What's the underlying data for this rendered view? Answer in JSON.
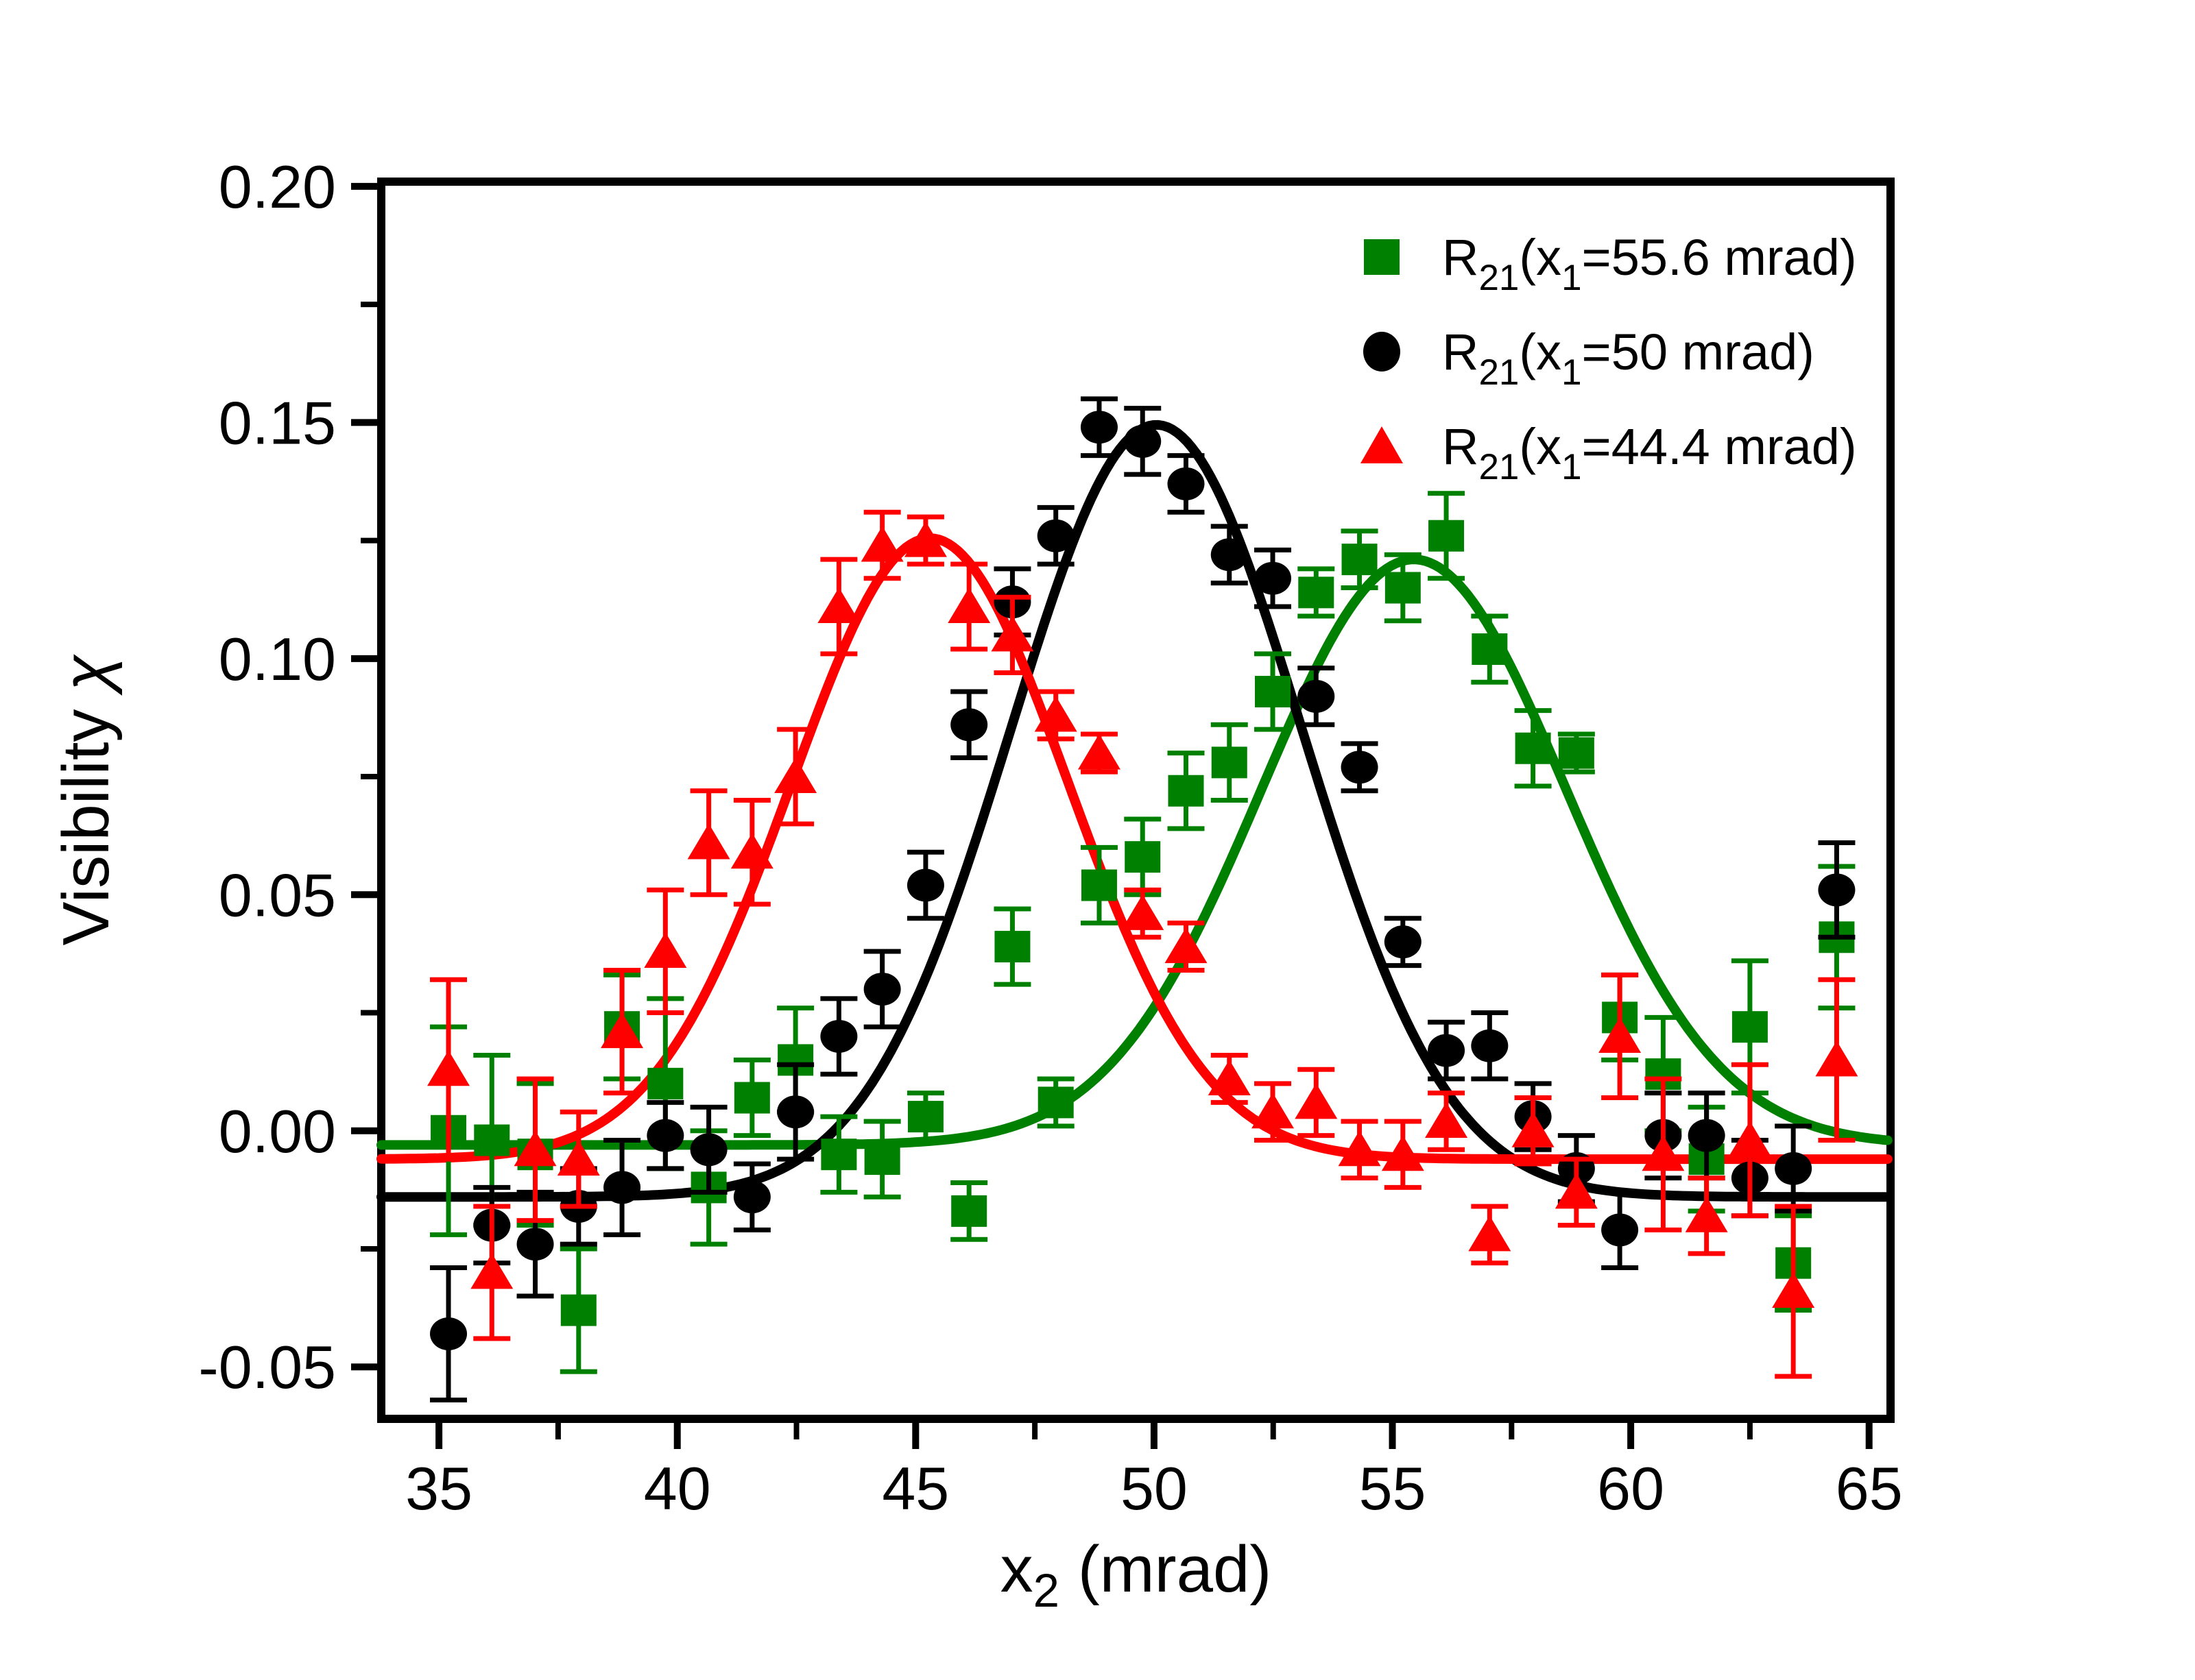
{
  "chart_data": {
    "type": "scatter",
    "title": "",
    "ylabel_segments": [
      {
        "t": "Visibility ",
        "italic": false
      },
      {
        "t": "χ",
        "italic": true
      }
    ],
    "xlabel_segments": [
      {
        "t": "x",
        "sub": false
      },
      {
        "t": "2",
        "sub": true
      },
      {
        "t": " (mrad)",
        "sub": false
      }
    ],
    "xlim": [
      33.79,
      65.45
    ],
    "ylim": [
      -0.061,
      0.201
    ],
    "x_major_ticks": [
      35,
      40,
      45,
      50,
      55,
      60,
      65
    ],
    "x_major_tick_labels": [
      "35",
      "40",
      "45",
      "50",
      "55",
      "60",
      "65"
    ],
    "x_minor_ticks": [
      37.5,
      42.5,
      47.5,
      52.5,
      57.5,
      62.5
    ],
    "y_major_ticks": [
      0.2,
      0.15,
      0.1,
      0.05,
      0.0,
      -0.05
    ],
    "y_major_tick_labels": [
      "0.20",
      "0.15",
      "0.10",
      "0.05",
      "0.00",
      "-0.05"
    ],
    "y_minor_ticks": [
      0.175,
      0.125,
      0.075,
      0.025,
      -0.025
    ],
    "grid": false,
    "legend_position": "top-right-inside",
    "x": [
      35.2,
      36.11,
      37.02,
      37.93,
      38.84,
      39.75,
      40.66,
      41.57,
      42.48,
      43.39,
      44.3,
      45.21,
      46.12,
      47.03,
      47.94,
      48.85,
      49.76,
      50.67,
      51.58,
      52.49,
      53.4,
      54.31,
      55.22,
      56.13,
      57.04,
      57.95,
      58.86,
      59.77,
      60.68,
      61.59,
      62.5,
      63.41,
      64.32
    ],
    "series": [
      {
        "id": "green",
        "marker": "square",
        "color": "#008000",
        "label_segments": [
          {
            "t": "R",
            "sub": false
          },
          {
            "t": "21",
            "sub": true
          },
          {
            "t": "(x",
            "sub": false
          },
          {
            "t": "1",
            "sub": true
          },
          {
            "t": "=55.6 mrad)",
            "sub": false
          }
        ],
        "y": [
          0.0,
          -0.002,
          -0.005,
          -0.038,
          0.022,
          0.01,
          -0.012,
          0.007,
          0.015,
          -0.005,
          -0.006,
          0.003,
          -0.017,
          0.039,
          0.006,
          0.052,
          0.058,
          0.072,
          0.078,
          0.093,
          0.114,
          0.121,
          0.115,
          0.126,
          0.102,
          0.081,
          0.08,
          0.024,
          0.012,
          -0.006,
          0.022,
          -0.028,
          0.041
        ],
        "yerr": [
          0.022,
          0.018,
          0.015,
          0.013,
          0.011,
          0.018,
          0.012,
          0.008,
          0.011,
          0.008,
          0.008,
          0.005,
          0.006,
          0.008,
          0.005,
          0.008,
          0.008,
          0.008,
          0.008,
          0.008,
          0.005,
          0.006,
          0.007,
          0.009,
          0.007,
          0.008,
          0.004,
          0.009,
          0.012,
          0.011,
          0.014,
          0.01,
          0.015
        ],
        "fit": {
          "shape": "gaussian",
          "baseline": -0.003,
          "amplitude": 0.124,
          "center": 55.45,
          "sigma": 3.2
        }
      },
      {
        "id": "black",
        "marker": "circle",
        "color": "#000000",
        "label_segments": [
          {
            "t": "R",
            "sub": false
          },
          {
            "t": "21",
            "sub": true
          },
          {
            "t": "(x",
            "sub": false
          },
          {
            "t": "1",
            "sub": true
          },
          {
            "t": "=50 mrad)",
            "sub": false
          }
        ],
        "y": [
          -0.043,
          -0.02,
          -0.024,
          -0.016,
          -0.012,
          -0.001,
          -0.004,
          -0.014,
          0.004,
          0.02,
          0.03,
          0.052,
          0.086,
          0.112,
          0.126,
          0.149,
          0.146,
          0.137,
          0.122,
          0.117,
          0.092,
          0.077,
          0.04,
          0.017,
          0.018,
          0.003,
          -0.008,
          -0.021,
          -0.001,
          -0.001,
          -0.01,
          -0.008,
          0.051
        ],
        "yerr": [
          0.014,
          0.008,
          0.011,
          0.008,
          0.01,
          0.007,
          0.009,
          0.007,
          0.01,
          0.008,
          0.008,
          0.007,
          0.007,
          0.007,
          0.006,
          0.006,
          0.007,
          0.006,
          0.006,
          0.006,
          0.006,
          0.005,
          0.005,
          0.006,
          0.007,
          0.007,
          0.007,
          0.008,
          0.009,
          0.009,
          0.008,
          0.009,
          0.01
        ],
        "fit": {
          "shape": "gaussian",
          "baseline": -0.014,
          "amplitude": 0.1635,
          "center": 50.05,
          "sigma": 3.05
        }
      },
      {
        "id": "red",
        "marker": "triangle",
        "color": "#ff0000",
        "label_segments": [
          {
            "t": "R",
            "sub": false
          },
          {
            "t": "21",
            "sub": true
          },
          {
            "t": "(x",
            "sub": false
          },
          {
            "t": "1",
            "sub": true
          },
          {
            "t": "=44.4 mrad)",
            "sub": false
          }
        ],
        "y": [
          0.013,
          -0.03,
          -0.004,
          -0.006,
          0.021,
          0.038,
          0.061,
          0.059,
          0.075,
          0.111,
          0.124,
          0.125,
          0.111,
          0.105,
          0.088,
          0.08,
          0.046,
          0.039,
          0.011,
          0.004,
          0.006,
          -0.004,
          -0.005,
          0.002,
          -0.022,
          0.0,
          -0.013,
          0.02,
          -0.005,
          -0.018,
          -0.002,
          -0.034,
          0.015
        ],
        "yerr": [
          0.019,
          0.014,
          0.015,
          0.01,
          0.013,
          0.013,
          0.011,
          0.011,
          0.01,
          0.01,
          0.007,
          0.005,
          0.009,
          0.008,
          0.005,
          0.004,
          0.005,
          0.005,
          0.005,
          0.006,
          0.007,
          0.006,
          0.007,
          0.006,
          0.006,
          0.007,
          0.007,
          0.013,
          0.016,
          0.008,
          0.016,
          0.018,
          0.017
        ],
        "fit": {
          "shape": "gaussian",
          "baseline": -0.006,
          "amplitude": 0.1315,
          "center": 45.3,
          "sigma": 2.9
        }
      }
    ]
  }
}
